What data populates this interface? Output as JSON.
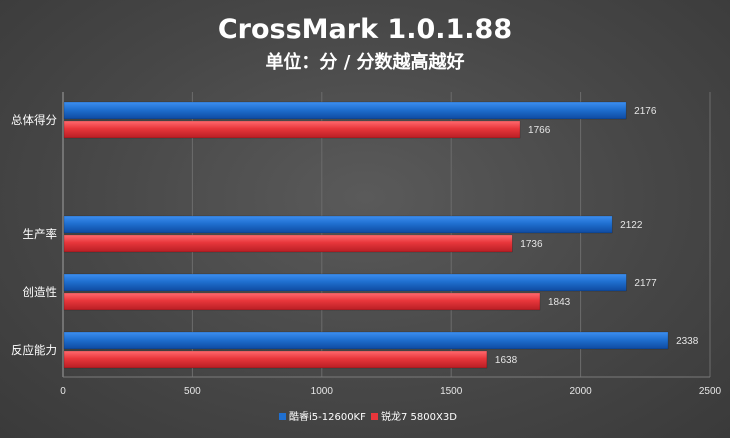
{
  "chart_data": {
    "type": "bar",
    "orientation": "horizontal",
    "title": "CrossMark 1.0.1.88",
    "subtitle": "单位：分 / 分数越高越好",
    "categories": [
      "总体得分",
      "生产率",
      "创造性",
      "反应能力"
    ],
    "series": [
      {
        "name": "酷睿i5-12600KF",
        "color": "#1f6fd0",
        "values": [
          2176,
          2122,
          2177,
          2338
        ]
      },
      {
        "name": "锐龙7 5800X3D",
        "color": "#e8363b",
        "values": [
          1766,
          1736,
          1843,
          1638
        ]
      }
    ],
    "xlim": [
      0,
      2500
    ],
    "xticks": [
      0,
      500,
      1000,
      1500,
      2000,
      2500
    ],
    "grid": true,
    "legend_position": "bottom"
  }
}
